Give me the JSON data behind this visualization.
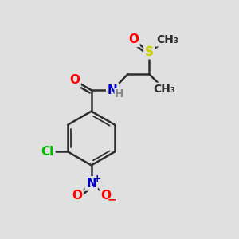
{
  "bg_color": "#e0e0e0",
  "bond_color": "#2d2d2d",
  "bond_width": 1.8,
  "atom_colors": {
    "O": "#ff0000",
    "N": "#0000cc",
    "S": "#cccc00",
    "Cl": "#00bb00",
    "C": "#2d2d2d",
    "H": "#888888"
  },
  "font_size": 11
}
